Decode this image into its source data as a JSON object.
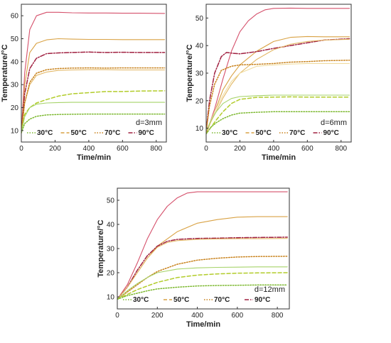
{
  "chart_data": [
    {
      "type": "line",
      "annotation": "d=3mm",
      "xlabel": "Time/min",
      "ylabel": "Temperature/°C",
      "xlim": [
        0,
        860
      ],
      "ylim": [
        5,
        65
      ],
      "xticks": [
        0,
        200,
        400,
        600,
        800
      ],
      "yticks": [
        10,
        20,
        30,
        40,
        50,
        60
      ],
      "legend": [
        "30°C",
        "50°C",
        "70°C",
        "90°C"
      ],
      "legend_position": "bottom",
      "series": [
        {
          "style": "solid",
          "color": "#d5506b",
          "x": [
            0,
            20,
            50,
            90,
            150,
            220,
            300,
            400,
            500,
            600,
            700,
            850
          ],
          "y": [
            9,
            35,
            54,
            60,
            61.5,
            61.5,
            61.3,
            61.2,
            61.2,
            61.1,
            61.1,
            61
          ]
        },
        {
          "style": "solid",
          "color": "#d9a244",
          "x": [
            0,
            20,
            50,
            90,
            150,
            220,
            300,
            400,
            500,
            600,
            700,
            850
          ],
          "y": [
            9,
            30,
            44,
            48,
            49.5,
            50,
            49.8,
            49.7,
            49.7,
            49.6,
            49.6,
            49.6
          ]
        },
        {
          "style": "dashdot",
          "color": "#a02040",
          "x": [
            0,
            20,
            50,
            90,
            150,
            220,
            300,
            400,
            500,
            600,
            700,
            850
          ],
          "y": [
            9,
            26,
            37,
            41.5,
            43.5,
            43.8,
            44,
            44.2,
            44,
            44.1,
            44,
            44
          ]
        },
        {
          "style": "solid",
          "color": "#e3b866",
          "x": [
            0,
            20,
            50,
            90,
            150,
            220,
            300,
            400,
            500,
            600,
            700,
            850
          ],
          "y": [
            9,
            22,
            30,
            34,
            35.5,
            36.2,
            36.4,
            36.5,
            36.5,
            36.4,
            36.4,
            36.4
          ]
        },
        {
          "style": "dotted",
          "color": "#c8811a",
          "x": [
            0,
            20,
            50,
            90,
            150,
            220,
            300,
            400,
            500,
            600,
            700,
            850
          ],
          "y": [
            9,
            22,
            31,
            35,
            36.5,
            37,
            37.2,
            37.3,
            37.2,
            37.3,
            37.3,
            37.3
          ]
        },
        {
          "style": "dashed",
          "color": "#b2cc2a",
          "x": [
            0,
            20,
            50,
            90,
            150,
            220,
            300,
            400,
            500,
            600,
            700,
            850
          ],
          "y": [
            9,
            17,
            20,
            22,
            23.5,
            25,
            26,
            26.5,
            27,
            27,
            27.2,
            27.3
          ]
        },
        {
          "style": "solid",
          "color": "#a6d36a",
          "x": [
            0,
            20,
            50,
            90,
            150,
            220,
            300,
            400,
            500,
            600,
            700,
            850
          ],
          "y": [
            9,
            16,
            20,
            21.5,
            22,
            22.2,
            22.3,
            22.3,
            22.3,
            22.3,
            22.3,
            22.3
          ]
        },
        {
          "style": "dotted",
          "color": "#7cb82f",
          "x": [
            0,
            20,
            50,
            90,
            150,
            220,
            300,
            400,
            500,
            600,
            700,
            850
          ],
          "y": [
            9,
            13,
            15,
            16.2,
            16.8,
            17,
            17.1,
            17.2,
            17.2,
            17.2,
            17.2,
            17.2
          ]
        }
      ]
    },
    {
      "type": "line",
      "annotation": "d=6mm",
      "xlabel": "Time/min",
      "ylabel": "Temperature/°C",
      "xlim": [
        0,
        860
      ],
      "ylim": [
        5,
        55
      ],
      "xticks": [
        0,
        200,
        400,
        600,
        800
      ],
      "yticks": [
        10,
        20,
        30,
        40,
        50
      ],
      "legend": [
        "30°C",
        "50°C",
        "70°C",
        "90°C"
      ],
      "legend_position": "bottom",
      "series": [
        {
          "style": "solid",
          "color": "#d5506b",
          "x": [
            0,
            50,
            100,
            150,
            200,
            250,
            300,
            350,
            400,
            500,
            600,
            700,
            850
          ],
          "y": [
            8,
            17,
            28,
            38,
            45,
            49,
            51.5,
            53,
            53.5,
            53.6,
            53.5,
            53.5,
            53.5
          ]
        },
        {
          "style": "solid",
          "color": "#d9a244",
          "x": [
            0,
            50,
            100,
            150,
            200,
            300,
            400,
            500,
            600,
            700,
            850
          ],
          "y": [
            8,
            16,
            24,
            29,
            33,
            38,
            41.5,
            43,
            43.3,
            43.2,
            43.2
          ]
        },
        {
          "style": "dashdot",
          "color": "#a02040",
          "x": [
            0,
            20,
            50,
            90,
            120,
            160,
            200,
            300,
            400,
            500,
            600,
            700,
            850
          ],
          "y": [
            9,
            20,
            30,
            36,
            37.5,
            37.2,
            37,
            37.8,
            39,
            40,
            41,
            42,
            42.5
          ]
        },
        {
          "style": "solid",
          "color": "#e3b866",
          "x": [
            0,
            50,
            100,
            150,
            200,
            300,
            400,
            500,
            600,
            700,
            850
          ],
          "y": [
            9,
            15,
            21,
            26,
            30,
            35,
            38.5,
            40.5,
            41.5,
            42,
            42.3
          ]
        },
        {
          "style": "dotted",
          "color": "#c8811a",
          "x": [
            0,
            20,
            50,
            90,
            150,
            200,
            300,
            400,
            500,
            600,
            700,
            850
          ],
          "y": [
            9,
            18,
            26,
            31,
            32.5,
            33,
            33.2,
            33.5,
            34,
            34.2,
            34.5,
            34.7
          ]
        },
        {
          "style": "solid",
          "color": "#f0dca0",
          "x": [
            0,
            50,
            100,
            150,
            200,
            300,
            400,
            500,
            600,
            700,
            850
          ],
          "y": [
            9,
            16,
            22,
            27,
            30,
            32.5,
            33,
            33.3,
            33.5,
            33.5,
            33.5
          ]
        },
        {
          "style": "solid",
          "color": "#a6d36a",
          "x": [
            0,
            30,
            60,
            100,
            150,
            200,
            300,
            400,
            500,
            600,
            700,
            850
          ],
          "y": [
            9,
            13,
            16,
            19,
            20.8,
            21.5,
            21.8,
            22,
            22,
            22,
            22,
            22
          ]
        },
        {
          "style": "dashed",
          "color": "#b2cc2a",
          "x": [
            0,
            30,
            60,
            100,
            150,
            200,
            300,
            400,
            500,
            600,
            700,
            850
          ],
          "y": [
            8,
            10.5,
            13,
            16,
            19,
            20.5,
            21.2,
            21.3,
            21.4,
            21.3,
            21.3,
            21.3
          ]
        },
        {
          "style": "dotted",
          "color": "#7cb82f",
          "x": [
            0,
            30,
            60,
            100,
            150,
            200,
            300,
            400,
            500,
            600,
            700,
            850
          ],
          "y": [
            8,
            10.5,
            12,
            13.5,
            14.8,
            15.5,
            15.8,
            16,
            16,
            16,
            16,
            16
          ]
        }
      ]
    },
    {
      "type": "line",
      "annotation": "d=12mm",
      "xlabel": "Time/min",
      "ylabel": "Temperature/°C",
      "xlim": [
        0,
        860
      ],
      "ylim": [
        5,
        55
      ],
      "xticks": [
        0,
        200,
        400,
        600,
        800
      ],
      "yticks": [
        10,
        20,
        30,
        40,
        50
      ],
      "legend": [
        "30°C",
        "50°C",
        "70°C",
        "90°C"
      ],
      "legend_position": "bottom",
      "series": [
        {
          "style": "solid",
          "color": "#d5506b",
          "x": [
            0,
            50,
            100,
            150,
            200,
            250,
            300,
            350,
            400,
            500,
            600,
            700,
            850
          ],
          "y": [
            9,
            15,
            24,
            34,
            42,
            47.5,
            51,
            53,
            53.5,
            53.5,
            53.5,
            53.5,
            53.5
          ]
        },
        {
          "style": "solid",
          "color": "#d9a244",
          "x": [
            0,
            50,
            100,
            150,
            200,
            300,
            400,
            500,
            600,
            700,
            850
          ],
          "y": [
            9,
            14,
            20,
            26,
            31,
            37,
            40.5,
            42,
            43,
            43.2,
            43.2
          ]
        },
        {
          "style": "dashdot",
          "color": "#a02040",
          "x": [
            0,
            50,
            100,
            150,
            200,
            250,
            300,
            400,
            500,
            600,
            700,
            850
          ],
          "y": [
            9,
            14,
            21,
            27,
            31,
            33,
            33.8,
            34.2,
            34.3,
            34.5,
            34.6,
            34.7
          ]
        },
        {
          "style": "solid",
          "color": "#e3b866",
          "x": [
            0,
            50,
            100,
            150,
            200,
            250,
            300,
            400,
            500,
            600,
            700,
            850
          ],
          "y": [
            9,
            14,
            20,
            26,
            30.5,
            32.5,
            33.3,
            33.8,
            34,
            34.1,
            34.1,
            34.2
          ]
        },
        {
          "style": "dotted",
          "color": "#c8811a",
          "x": [
            0,
            50,
            100,
            150,
            200,
            300,
            400,
            500,
            600,
            700,
            850
          ],
          "y": [
            9,
            12,
            15,
            18,
            20.5,
            23.5,
            25.2,
            26,
            26.5,
            26.7,
            26.8
          ]
        },
        {
          "style": "solid",
          "color": "#a6d36a",
          "x": [
            0,
            50,
            100,
            150,
            200,
            300,
            400,
            500,
            600,
            700,
            850
          ],
          "y": [
            9,
            12.5,
            15.5,
            18,
            20,
            21.5,
            22,
            22.2,
            22.3,
            22.4,
            22.4
          ]
        },
        {
          "style": "dashed",
          "color": "#b2cc2a",
          "x": [
            0,
            50,
            100,
            150,
            200,
            300,
            400,
            500,
            600,
            700,
            850
          ],
          "y": [
            9,
            11,
            13,
            14.5,
            16,
            18,
            19,
            19.5,
            19.8,
            19.9,
            20
          ]
        },
        {
          "style": "dotted",
          "color": "#7cb82f",
          "x": [
            0,
            50,
            100,
            150,
            200,
            300,
            400,
            500,
            600,
            700,
            850
          ],
          "y": [
            9,
            10.5,
            11.5,
            12.5,
            13.3,
            14,
            14.5,
            14.7,
            14.8,
            14.9,
            14.9
          ]
        }
      ]
    }
  ]
}
